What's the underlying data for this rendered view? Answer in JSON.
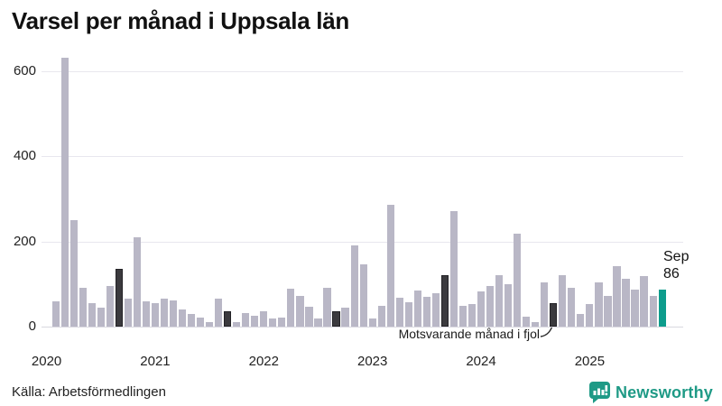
{
  "title": "Varsel per månad i Uppsala län",
  "footer": {
    "source": "Källa: Arbetsförmedlingen",
    "brand": "Newsworthy"
  },
  "annotation": {
    "text": "Motsvarande månad i fjol"
  },
  "current_point_label": {
    "line1": "Sep",
    "line2": "86"
  },
  "colors": {
    "bar": "#b9b7c6",
    "bar_last_year": "#3b3a3e",
    "bar_current": "#0d9c8c",
    "grid": "#e8e7ee",
    "baseline": "#d9d8e0",
    "axis_text": "#222222",
    "brand_teal": "#1f9a86"
  },
  "chart_data": {
    "type": "bar",
    "title": "Varsel per månad i Uppsala län",
    "xlabel": "",
    "ylabel": "",
    "y_ticks": [
      0,
      200,
      400,
      600
    ],
    "ylim": [
      0,
      650
    ],
    "x_year_labels": [
      "2020",
      "2021",
      "2022",
      "2023",
      "2024",
      "2025"
    ],
    "grid": true,
    "legend": false,
    "highlight_note": "Motsvarande månad i fjol",
    "current_value_label": "Sep 86",
    "categories": [
      "2020-01",
      "2020-02",
      "2020-03",
      "2020-04",
      "2020-05",
      "2020-06",
      "2020-07",
      "2020-08",
      "2020-09",
      "2020-10",
      "2020-11",
      "2020-12",
      "2021-01",
      "2021-02",
      "2021-03",
      "2021-04",
      "2021-05",
      "2021-06",
      "2021-07",
      "2021-08",
      "2021-09",
      "2021-10",
      "2021-11",
      "2021-12",
      "2022-01",
      "2022-02",
      "2022-03",
      "2022-04",
      "2022-05",
      "2022-06",
      "2022-07",
      "2022-08",
      "2022-09",
      "2022-10",
      "2022-11",
      "2022-12",
      "2023-01",
      "2023-02",
      "2023-03",
      "2023-04",
      "2023-05",
      "2023-06",
      "2023-07",
      "2023-08",
      "2023-09",
      "2023-10",
      "2023-11",
      "2023-12",
      "2024-01",
      "2024-02",
      "2024-03",
      "2024-04",
      "2024-05",
      "2024-06",
      "2024-07",
      "2024-08",
      "2024-09",
      "2024-10",
      "2024-11",
      "2024-12",
      "2025-01",
      "2025-02",
      "2025-03",
      "2025-04",
      "2025-05",
      "2025-06",
      "2025-07",
      "2025-08",
      "2025-09"
    ],
    "values": [
      0,
      60,
      630,
      250,
      90,
      55,
      45,
      95,
      135,
      65,
      210,
      60,
      55,
      65,
      62,
      40,
      30,
      22,
      10,
      65,
      35,
      10,
      32,
      26,
      37,
      20,
      22,
      88,
      73,
      46,
      20,
      92,
      35,
      44,
      190,
      145,
      20,
      48,
      285,
      68,
      57,
      85,
      70,
      78,
      120,
      270,
      48,
      53,
      83,
      95,
      120,
      100,
      218,
      23,
      11,
      103,
      56,
      120,
      90,
      29,
      52,
      104,
      73,
      142,
      113,
      87,
      118,
      73,
      86
    ],
    "highlight_last_year_indices": [
      8,
      20,
      32,
      44,
      56
    ],
    "current_index": 68
  }
}
